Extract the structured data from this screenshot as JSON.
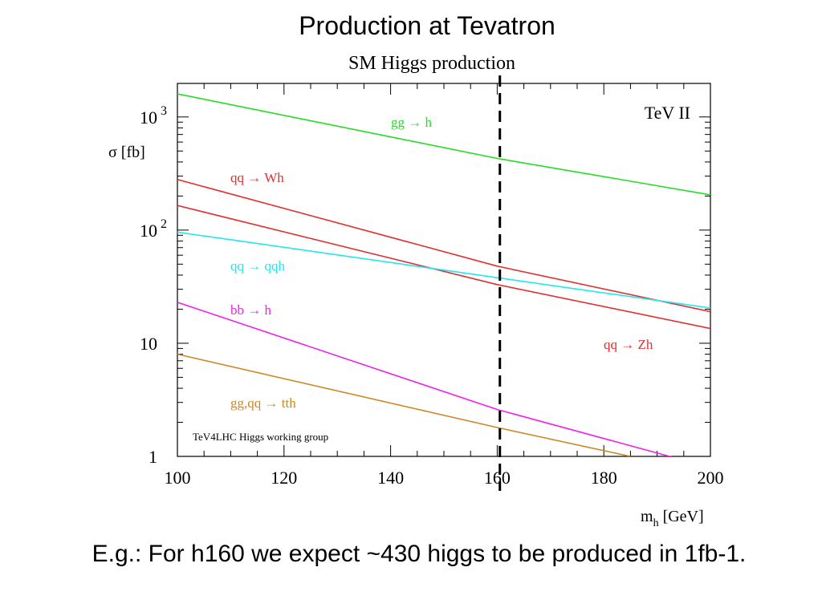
{
  "slide": {
    "title": "Production at Tevatron",
    "caption": "E.g.:  For h160 we expect ~430 higgs to be produced in 1fb-1."
  },
  "chart_data": {
    "type": "line",
    "title": "SM Higgs production",
    "xlabel": "m",
    "xlabel_sub": "h",
    "xlabel_unit": " [GeV]",
    "ylabel": "σ [fb]",
    "xlim": [
      100,
      200
    ],
    "ylim": [
      1,
      2000
    ],
    "yscale": "log",
    "xticks": [
      100,
      120,
      140,
      160,
      180,
      200
    ],
    "yticks": [
      {
        "value": 1,
        "base": "1",
        "exp": ""
      },
      {
        "value": 10,
        "base": "10",
        "exp": ""
      },
      {
        "value": 100,
        "base": "10",
        "exp": "2"
      },
      {
        "value": 1000,
        "base": "10",
        "exp": "3"
      }
    ],
    "annotation_top_right": "TeV II",
    "annotation_bottom_left": "TeV4LHC Higgs working group",
    "reference_line": {
      "x": 160.5,
      "style": "dashed",
      "color": "#000000"
    },
    "series": [
      {
        "name": "gg → h",
        "color": "#22dd22",
        "x": [
          100,
          160,
          200
        ],
        "y": [
          1600,
          430,
          205
        ]
      },
      {
        "name": "qq → Wh",
        "color": "#e03030",
        "x": [
          100,
          160,
          200
        ],
        "y": [
          280,
          48,
          19
        ]
      },
      {
        "name": "qq → Zh",
        "color": "#e03030",
        "x": [
          100,
          160,
          200
        ],
        "y": [
          165,
          33,
          13.5
        ]
      },
      {
        "name": "qq → qqh",
        "color": "#22e6ee",
        "x": [
          100,
          160,
          200
        ],
        "y": [
          96,
          38,
          20.5
        ]
      },
      {
        "name": "bb → h",
        "color": "#ee22ee",
        "x": [
          100,
          160,
          193
        ],
        "y": [
          23,
          2.6,
          0.98
        ]
      },
      {
        "name": "gg,qq → tth",
        "color": "#cc8822",
        "x": [
          100,
          160,
          185
        ],
        "y": [
          8,
          1.8,
          1.0
        ]
      }
    ],
    "grid": false,
    "legend": "inline labels"
  }
}
